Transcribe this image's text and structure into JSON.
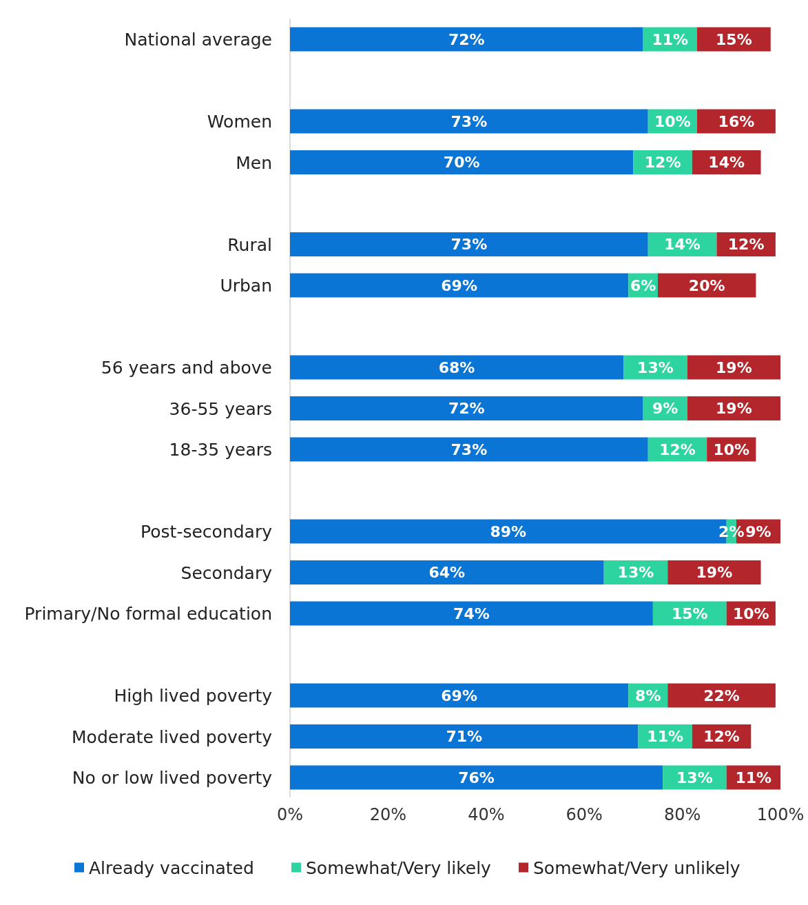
{
  "chart_data": {
    "type": "bar",
    "orientation": "horizontal",
    "stacked": true,
    "categories": [
      "National average",
      null,
      "Women",
      "Men",
      null,
      "Rural",
      "Urban",
      null,
      "56 years and above",
      "36-55 years",
      "18-35 years",
      null,
      "Post-secondary",
      "Secondary",
      "Primary/No formal education",
      null,
      "High lived poverty",
      "Moderate lived poverty",
      "No or low lived poverty"
    ],
    "series": [
      {
        "name": "Already vaccinated",
        "color": "#0a75d4",
        "values": [
          72,
          null,
          73,
          70,
          null,
          73,
          69,
          null,
          68,
          72,
          73,
          null,
          89,
          64,
          74,
          null,
          69,
          71,
          76
        ],
        "value_labels": [
          "72%",
          null,
          "73%",
          "70%",
          null,
          "73%",
          "69%",
          null,
          "68%",
          "72%",
          "73%",
          null,
          "89%",
          "64%",
          "74%",
          null,
          "69%",
          "71%",
          "76%"
        ]
      },
      {
        "name": "Somewhat/Very likely",
        "color": "#2dd4a0",
        "values": [
          11,
          null,
          10,
          12,
          null,
          14,
          6,
          null,
          13,
          9,
          12,
          null,
          2,
          13,
          15,
          null,
          8,
          11,
          13
        ],
        "value_labels": [
          "11%",
          null,
          "10%",
          "12%",
          null,
          "14%",
          "6%",
          null,
          "13%",
          "9%",
          "12%",
          null,
          "2%",
          "13%",
          "15%",
          null,
          "8%",
          "11%",
          "13%"
        ]
      },
      {
        "name": "Somewhat/Very unlikely",
        "color": "#b3262c",
        "values": [
          15,
          null,
          16,
          14,
          null,
          12,
          20,
          null,
          19,
          19,
          10,
          null,
          9,
          19,
          10,
          null,
          22,
          12,
          11
        ],
        "value_labels": [
          "15%",
          null,
          "16%",
          "14%",
          null,
          "12%",
          "20%",
          null,
          "19%",
          "19%",
          "10%",
          null,
          "9%",
          "19%",
          "10%",
          null,
          "22%",
          "12%",
          "11%"
        ]
      }
    ],
    "xlim": [
      0,
      100
    ],
    "xticks": [
      {
        "value": 0,
        "label": "0%"
      },
      {
        "value": 20,
        "label": "20%"
      },
      {
        "value": 40,
        "label": "40%"
      },
      {
        "value": 60,
        "label": "60%"
      },
      {
        "value": 80,
        "label": "80%"
      },
      {
        "value": 100,
        "label": "100%"
      }
    ],
    "legend": "bottom",
    "grid": false
  }
}
